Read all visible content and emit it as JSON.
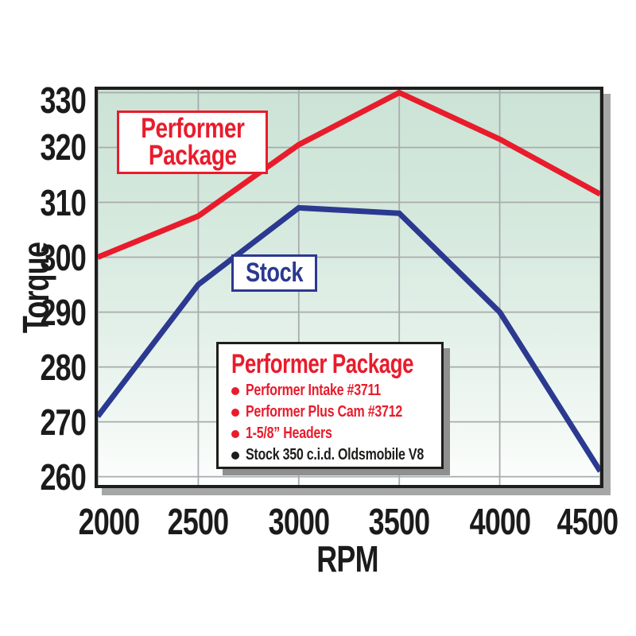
{
  "colors": {
    "red": "#e81c2c",
    "blue": "#2b3990",
    "black": "#1d1d1b",
    "grid": "#a8abae",
    "axis_text": "#1b1b1b",
    "plot_bg_top": "#cbe3d6",
    "plot_bg_bottom": "#fcfefd"
  },
  "chart_data": {
    "type": "line",
    "title": "",
    "xlabel": "RPM",
    "ylabel": "Torque",
    "xlim": [
      2000,
      4500
    ],
    "ylim": [
      258.5,
      330.5
    ],
    "xticks": [
      2000,
      2500,
      3000,
      3500,
      4000,
      4500
    ],
    "yticks": [
      260,
      270,
      280,
      290,
      300,
      310,
      320,
      330
    ],
    "grid": true,
    "legend_position": "inner-box",
    "series": [
      {
        "name": "Performer Package",
        "color": "#e81c2c",
        "x": [
          2000,
          2500,
          3000,
          3500,
          4000,
          4500
        ],
        "values": [
          300,
          307.5,
          320.5,
          330,
          321.5,
          311.5
        ]
      },
      {
        "name": "Stock",
        "color": "#2b3990",
        "x": [
          2000,
          2500,
          3000,
          3500,
          4000,
          4500
        ],
        "values": [
          271,
          295,
          309,
          308,
          290,
          261
        ]
      }
    ]
  },
  "annotations": {
    "performer": {
      "line1": "Performer",
      "line2": "Package"
    },
    "stock": {
      "text": "Stock"
    }
  },
  "legend": {
    "title": "Performer Package",
    "items": [
      {
        "text": "Performer Intake #3711",
        "color": "red"
      },
      {
        "text": "Performer Plus Cam #3712",
        "color": "red"
      },
      {
        "text": "1-5/8” Headers",
        "color": "red"
      },
      {
        "text": "Stock 350 c.i.d. Oldsmobile V8",
        "color": "black"
      }
    ]
  }
}
